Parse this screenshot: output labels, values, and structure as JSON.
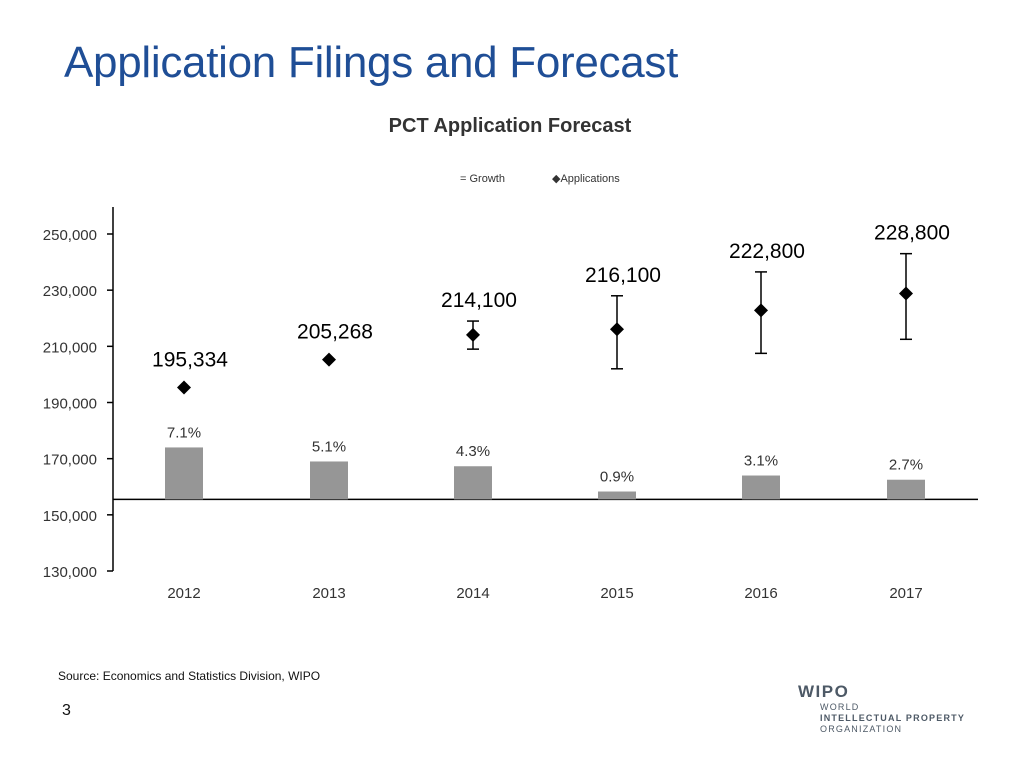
{
  "slide": {
    "title": "Application Filings and Forecast",
    "source": "Source:  Economics and Statistics Division, WIPO",
    "page_number": "3"
  },
  "logo": {
    "name": "WIPO",
    "line1": "WORLD",
    "line2": "INTELLECTUAL PROPERTY",
    "line3": "ORGANIZATION"
  },
  "chart_data": {
    "type": "bar",
    "title": "PCT Application Forecast",
    "xlabel": "",
    "ylabel": "",
    "ylim": [
      130000,
      260000
    ],
    "yticks": [
      130000,
      150000,
      170000,
      190000,
      210000,
      230000,
      250000
    ],
    "ytick_labels": [
      "130,000",
      "150,000",
      "170,000",
      "190,000",
      "210,000",
      "230,000",
      "250,000"
    ],
    "categories": [
      "2012",
      "2013",
      "2014",
      "2015",
      "2016",
      "2017"
    ],
    "legend": {
      "placement": "top-center",
      "entries": [
        "Growth",
        "Applications"
      ],
      "markers": [
        "=",
        "◆"
      ]
    },
    "colors": {
      "bar": "#969696",
      "marker": "#000000",
      "axis": "#000000"
    },
    "series": [
      {
        "name": "Growth",
        "kind": "bar",
        "baseline": 155500,
        "bar_tops": [
          174000,
          169000,
          167300,
          158300,
          164000,
          162500
        ],
        "values_pct": [
          7.1,
          5.1,
          4.3,
          0.9,
          3.1,
          2.7
        ],
        "labels": [
          "7.1%",
          "5.1%",
          "4.3%",
          "0.9%",
          "3.1%",
          "2.7%"
        ]
      },
      {
        "name": "Applications",
        "kind": "scatter",
        "values": [
          195334,
          205268,
          214100,
          216100,
          222800,
          228800
        ],
        "labels": [
          "195,334",
          "205,268",
          "214,100",
          "216,100",
          "222,800",
          "228,800"
        ],
        "error_low": [
          null,
          null,
          209000,
          202000,
          207500,
          212500
        ],
        "error_high": [
          null,
          null,
          219000,
          228000,
          236500,
          243000
        ]
      }
    ]
  }
}
